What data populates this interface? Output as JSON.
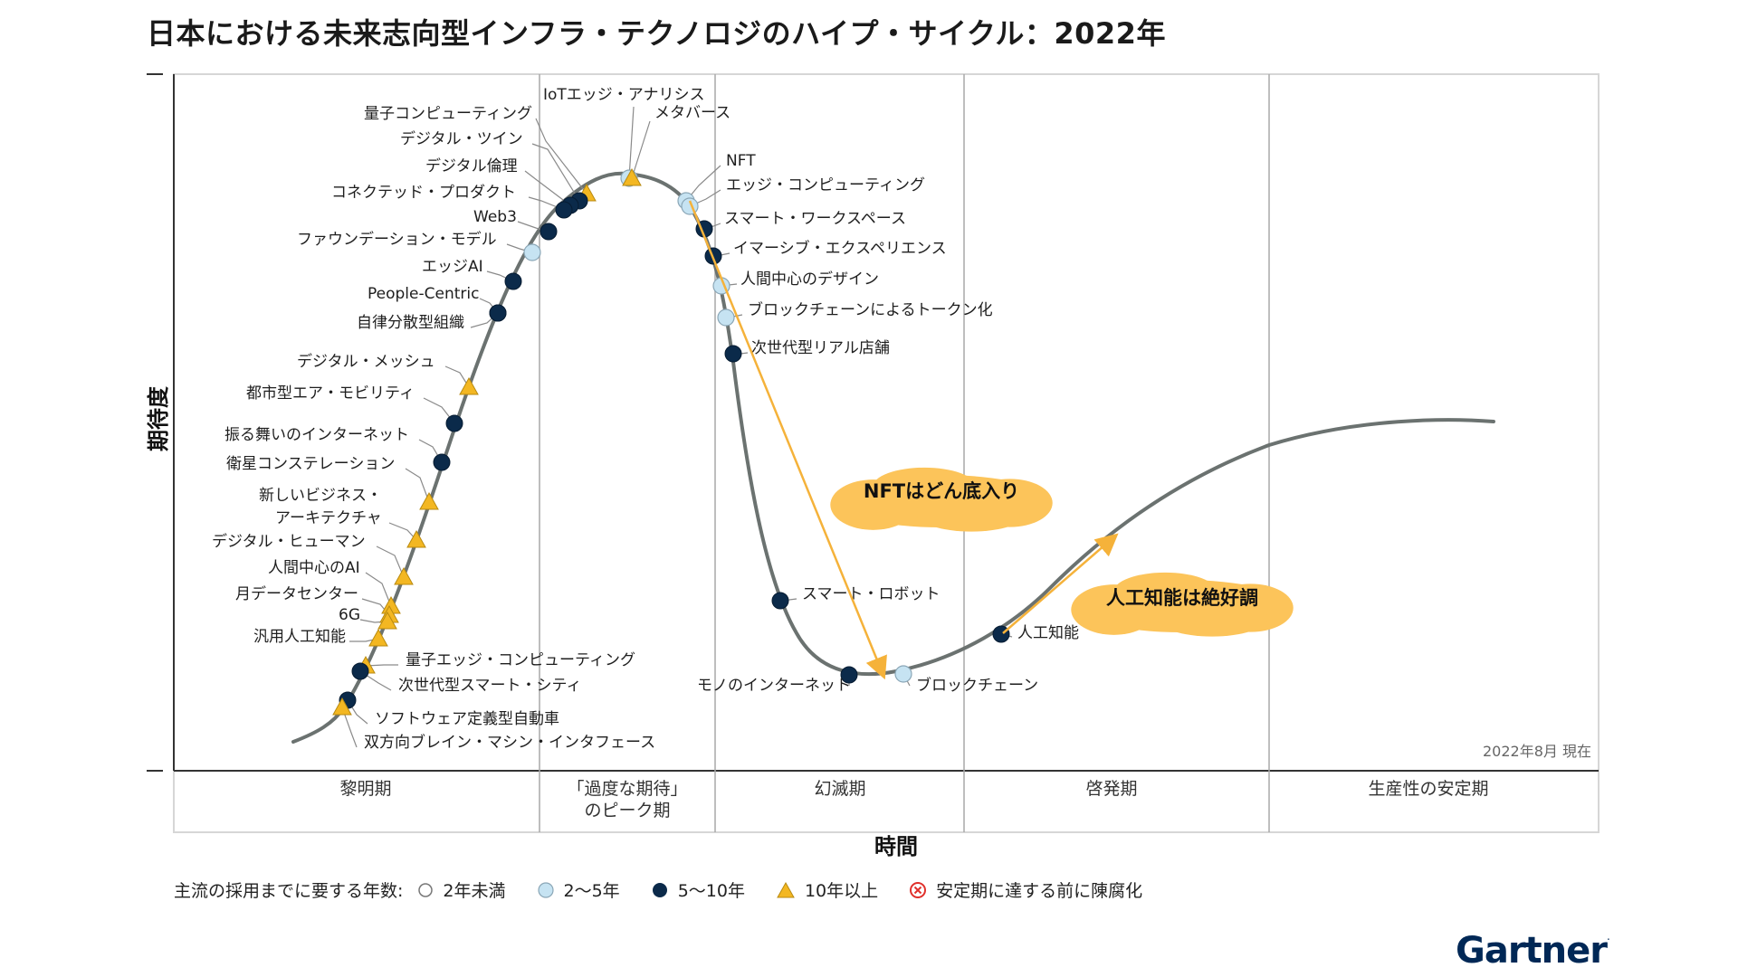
{
  "title": "日本における未来志向型インフラ・テクノロジのハイプ・サイクル：2022年",
  "axis": {
    "y_label": "期待度",
    "x_label": "時間",
    "as_of": "2022年8月 現在"
  },
  "phases": [
    {
      "id": "innovation",
      "lines": [
        "黎明期"
      ]
    },
    {
      "id": "peak",
      "lines": [
        "「過度な期待」",
        "のピーク期"
      ]
    },
    {
      "id": "trough",
      "lines": [
        "幻滅期"
      ]
    },
    {
      "id": "slope",
      "lines": [
        "啓発期"
      ]
    },
    {
      "id": "plateau",
      "lines": [
        "生産性の安定期"
      ]
    }
  ],
  "legend": {
    "prefix": "主流の採用までに要する年数:",
    "items": [
      {
        "type": "lt2",
        "label": "2年未満"
      },
      {
        "type": "y2to5",
        "label": "2〜5年"
      },
      {
        "type": "y5to10",
        "label": "5〜10年"
      },
      {
        "type": "gt10",
        "label": "10年以上"
      },
      {
        "type": "obsolete",
        "label": "安定期に達する前に陳腐化"
      }
    ]
  },
  "colors": {
    "lt2": "#ffffff",
    "y2to5": "#c6e3f2",
    "y5to10": "#0b2a4a",
    "gt10": "#f3b722",
    "curve": "#6b7270",
    "arrow": "#f5b23a",
    "bubble": "#fcc45a",
    "obsolete": "#e0302b"
  },
  "technologies": [
    {
      "label": "量子コンピューティング",
      "type": "gt10"
    },
    {
      "label": "IoTエッジ・アナリシス",
      "type": "y2to5"
    },
    {
      "label": "メタバース",
      "type": "gt10"
    },
    {
      "label": "デジタル・ツイン",
      "type": "y5to10"
    },
    {
      "label": "デジタル倫理",
      "type": "y5to10"
    },
    {
      "label": "コネクテッド・プロダクト",
      "type": "y5to10"
    },
    {
      "label": "Web3",
      "type": "y5to10"
    },
    {
      "label": "ファウンデーション・モデル",
      "type": "y2to5"
    },
    {
      "label": "エッジAI",
      "type": "y5to10"
    },
    {
      "label": "People-Centric",
      "type": "y5to10"
    },
    {
      "label": "自律分散型組織",
      "type": "y5to10"
    },
    {
      "label": "デジタル・メッシュ",
      "type": "gt10"
    },
    {
      "label": "都市型エア・モビリティ",
      "type": "y5to10"
    },
    {
      "label": "振る舞いのインターネット",
      "type": "y5to10"
    },
    {
      "label": "衛星コンステレーション",
      "type": "gt10"
    },
    {
      "label": "新しいビジネス・",
      "label2": "アーキテクチャ",
      "type": "gt10"
    },
    {
      "label": "デジタル・ヒューマン",
      "type": "gt10"
    },
    {
      "label": "人間中心のAI",
      "type": "gt10"
    },
    {
      "label": "月データセンター",
      "type": "gt10"
    },
    {
      "label": "6G",
      "type": "gt10"
    },
    {
      "label": "汎用人工知能",
      "type": "gt10"
    },
    {
      "label": "量子エッジ・コンピューティング",
      "type": "gt10"
    },
    {
      "label": "次世代型スマート・シティ",
      "type": "y5to10"
    },
    {
      "label": "ソフトウェア定義型自動車",
      "type": "y5to10"
    },
    {
      "label": "双方向ブレイン・マシン・インタフェース",
      "type": "gt10"
    },
    {
      "label": "NFT",
      "type": "y2to5"
    },
    {
      "label": "エッジ・コンピューティング",
      "type": "y2to5"
    },
    {
      "label": "スマート・ワークスペース",
      "type": "y5to10"
    },
    {
      "label": "イマーシブ・エクスペリエンス",
      "type": "y5to10"
    },
    {
      "label": "人間中心のデザイン",
      "type": "y2to5"
    },
    {
      "label": "ブロックチェーンによるトークン化",
      "type": "y2to5"
    },
    {
      "label": "次世代型リアル店舗",
      "type": "y5to10"
    },
    {
      "label": "スマート・ロボット",
      "type": "y5to10"
    },
    {
      "label": "モノのインターネット",
      "type": "y5to10"
    },
    {
      "label": "ブロックチェーン",
      "type": "y2to5"
    },
    {
      "label": "人工知能",
      "type": "y5to10"
    }
  ],
  "annotations": [
    {
      "id": "nft-note",
      "text": "NFTはどん底入り"
    },
    {
      "id": "ai-note",
      "text": "人工知能は絶好調"
    }
  ],
  "brand": "Gartner"
}
